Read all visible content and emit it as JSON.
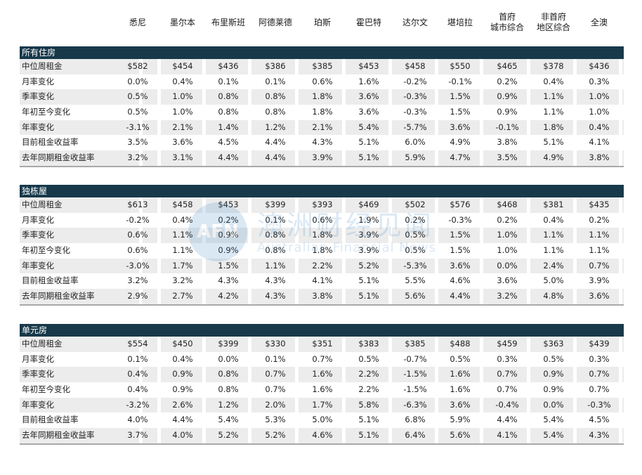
{
  "columns": [
    "悉尼",
    "墨尔本",
    "布里斯班",
    "阿德莱德",
    "珀斯",
    "霍巴特",
    "达尔文",
    "堪培拉",
    "首府\n城市综合",
    "非首府\n地区综合",
    "全澳"
  ],
  "sections": [
    {
      "title": "所有住房",
      "rows": [
        {
          "label": "中位周租金",
          "values": [
            "$582",
            "$454",
            "$436",
            "$386",
            "$385",
            "$453",
            "$458",
            "$550",
            "$465",
            "$378",
            "$436"
          ]
        },
        {
          "label": "月率变化",
          "values": [
            "0.0%",
            "0.4%",
            "0.1%",
            "0.1%",
            "0.6%",
            "1.6%",
            "-0.2%",
            "-0.1%",
            "0.2%",
            "0.4%",
            "0.3%"
          ]
        },
        {
          "label": "季率变化",
          "values": [
            "0.5%",
            "1.0%",
            "0.8%",
            "0.8%",
            "1.8%",
            "3.6%",
            "-0.3%",
            "1.5%",
            "0.9%",
            "1.1%",
            "1.0%"
          ]
        },
        {
          "label": "年初至今变化",
          "values": [
            "0.5%",
            "1.0%",
            "0.8%",
            "0.8%",
            "1.8%",
            "3.6%",
            "-0.3%",
            "1.5%",
            "0.9%",
            "1.1%",
            "1.0%"
          ]
        },
        {
          "label": "年率变化",
          "values": [
            "-3.1%",
            "2.1%",
            "1.4%",
            "1.2%",
            "2.1%",
            "5.4%",
            "-5.7%",
            "3.6%",
            "-0.1%",
            "1.8%",
            "0.4%"
          ]
        },
        {
          "label": "目前租金收益率",
          "values": [
            "3.5%",
            "3.6%",
            "4.5%",
            "4.4%",
            "4.3%",
            "5.1%",
            "6.0%",
            "4.9%",
            "3.8%",
            "5.1%",
            "4.1%"
          ]
        },
        {
          "label": "去年同期租金收益率",
          "values": [
            "3.2%",
            "3.1%",
            "4.4%",
            "4.4%",
            "3.9%",
            "5.1%",
            "5.9%",
            "4.7%",
            "3.5%",
            "4.9%",
            "3.8%"
          ]
        }
      ]
    },
    {
      "title": "独栋屋",
      "rows": [
        {
          "label": "中位周租金",
          "values": [
            "$613",
            "$458",
            "$453",
            "$399",
            "$393",
            "$469",
            "$502",
            "$576",
            "$468",
            "$381",
            "$435"
          ]
        },
        {
          "label": "月率变化",
          "values": [
            "-0.2%",
            "0.4%",
            "0.2%",
            "0.1%",
            "0.6%",
            "1.9%",
            "0.2%",
            "-0.3%",
            "0.2%",
            "0.4%",
            "0.2%"
          ]
        },
        {
          "label": "季率变化",
          "values": [
            "0.6%",
            "1.1%",
            "0.9%",
            "0.8%",
            "1.8%",
            "3.9%",
            "0.5%",
            "1.5%",
            "1.0%",
            "1.1%",
            "1.1%"
          ]
        },
        {
          "label": "年初至今变化",
          "values": [
            "0.6%",
            "1.1%",
            "0.9%",
            "0.8%",
            "1.8%",
            "3.9%",
            "0.5%",
            "1.5%",
            "1.0%",
            "1.1%",
            "1.1%"
          ]
        },
        {
          "label": "年率变化",
          "values": [
            "-3.0%",
            "1.7%",
            "1.5%",
            "1.1%",
            "2.2%",
            "5.2%",
            "-5.3%",
            "3.6%",
            "0.0%",
            "2.4%",
            "0.7%"
          ]
        },
        {
          "label": "目前租金收益率",
          "values": [
            "3.2%",
            "3.2%",
            "4.3%",
            "4.3%",
            "4.1%",
            "5.1%",
            "5.5%",
            "4.6%",
            "3.6%",
            "5.0%",
            "3.9%"
          ]
        },
        {
          "label": "去年同期租金收益率",
          "values": [
            "2.9%",
            "2.7%",
            "4.2%",
            "4.3%",
            "3.8%",
            "5.1%",
            "5.6%",
            "4.4%",
            "3.2%",
            "4.8%",
            "3.6%"
          ]
        }
      ]
    },
    {
      "title": "单元房",
      "rows": [
        {
          "label": "中位周租金",
          "values": [
            "$554",
            "$450",
            "$399",
            "$330",
            "$351",
            "$383",
            "$385",
            "$488",
            "$459",
            "$363",
            "$439"
          ]
        },
        {
          "label": "月率变化",
          "values": [
            "0.1%",
            "0.4%",
            "0.0%",
            "0.1%",
            "0.7%",
            "0.5%",
            "-0.7%",
            "0.5%",
            "0.3%",
            "0.5%",
            "0.3%"
          ]
        },
        {
          "label": "季率变化",
          "values": [
            "0.4%",
            "0.9%",
            "0.8%",
            "0.7%",
            "1.6%",
            "2.2%",
            "-1.5%",
            "1.6%",
            "0.7%",
            "0.9%",
            "0.7%"
          ]
        },
        {
          "label": "年初至今变化",
          "values": [
            "0.4%",
            "0.9%",
            "0.8%",
            "0.7%",
            "1.6%",
            "2.2%",
            "-1.5%",
            "1.6%",
            "0.7%",
            "0.9%",
            "0.7%"
          ]
        },
        {
          "label": "年率变化",
          "values": [
            "-3.2%",
            "2.6%",
            "1.2%",
            "2.0%",
            "1.7%",
            "5.8%",
            "-6.3%",
            "3.6%",
            "-0.4%",
            "0.0%",
            "-0.3%"
          ]
        },
        {
          "label": "目前租金收益率",
          "values": [
            "4.0%",
            "4.4%",
            "5.4%",
            "5.3%",
            "5.0%",
            "5.1%",
            "6.8%",
            "5.9%",
            "4.4%",
            "5.4%",
            "4.5%"
          ]
        },
        {
          "label": "去年同期租金收益率",
          "values": [
            "3.7%",
            "4.0%",
            "5.2%",
            "5.2%",
            "4.6%",
            "5.1%",
            "6.4%",
            "5.6%",
            "4.1%",
            "5.4%",
            "4.3%"
          ]
        }
      ]
    }
  ],
  "watermark": {
    "logo_text": "AFN",
    "cn": "澳洲财经见闻",
    "en": "Australian Financial News"
  }
}
